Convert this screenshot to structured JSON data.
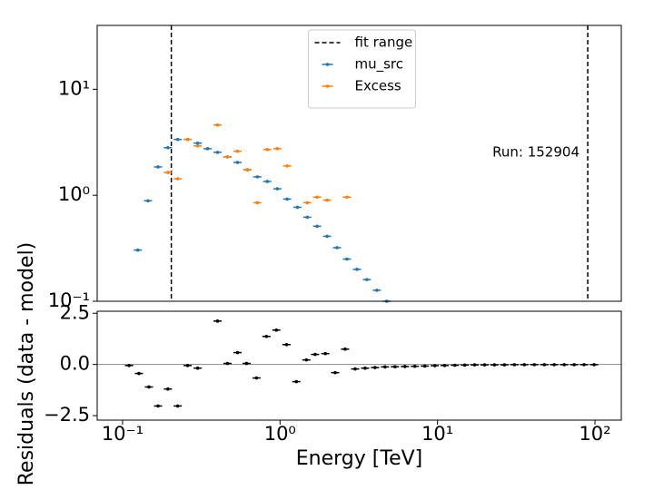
{
  "chart_data": [
    {
      "type": "errorbar",
      "x": [
        0.125,
        0.145,
        0.168,
        0.194,
        0.224,
        0.259,
        0.3,
        0.347,
        0.401,
        0.463,
        0.537,
        0.621,
        0.718,
        0.83,
        0.962,
        1.11,
        1.29,
        1.49,
        1.72,
        1.99,
        2.3,
        2.66,
        3.08,
        3.56,
        4.12,
        4.76
      ],
      "series": [
        {
          "name": "mu_src",
          "color": "#1f77b4",
          "values": [
            0.304,
            0.887,
            1.85,
            2.81,
            3.36,
            3.36,
            3.1,
            2.75,
            2.54,
            2.3,
            2.04,
            1.74,
            1.49,
            1.35,
            1.15,
            0.92,
            0.77,
            0.62,
            0.51,
            0.41,
            0.32,
            0.25,
            0.2,
            0.16,
            0.127,
            0.1
          ]
        },
        {
          "name": "Excess",
          "color": "#ff7f0e",
          "values": [
            null,
            null,
            null,
            1.64,
            1.43,
            3.36,
            2.92,
            null,
            4.6,
            2.3,
            2.6,
            1.74,
            0.85,
            2.7,
            2.75,
            1.89,
            null,
            0.85,
            0.96,
            0.9,
            null,
            0.96,
            null,
            null,
            null,
            null
          ]
        }
      ],
      "fit_range": {
        "name": "fit range",
        "color": "#000000",
        "values": [
          0.204,
          90
        ]
      },
      "annotation": "Run: 152904",
      "xlim": [
        0.069,
        147
      ],
      "ylim": [
        0.1,
        40
      ],
      "log_x": true,
      "log_y": true,
      "yticks": [
        {
          "value": 0.1,
          "label": "10⁻¹"
        },
        {
          "value": 1,
          "label": "10⁰"
        },
        {
          "value": 10,
          "label": "10¹"
        }
      ],
      "legend": "upper center"
    },
    {
      "type": "errorbar",
      "x": [
        0.11,
        0.127,
        0.147,
        0.168,
        0.194,
        0.224,
        0.259,
        0.3,
        0.401,
        0.464,
        0.537,
        0.613,
        0.709,
        0.82,
        0.948,
        1.1,
        1.27,
        1.47,
        1.67,
        1.94,
        2.24,
        2.59,
        3.0,
        3.47,
        4.01,
        4.64,
        5.37,
        6.21,
        7.18,
        8.31,
        9.61,
        11.1,
        12.9,
        14.9,
        17.2,
        19.9,
        23.0,
        26.6,
        30.8,
        35.6,
        41.2,
        47.7,
        55.1,
        63.8,
        73.8,
        85.3,
        98.7
      ],
      "series": [
        {
          "color": "#000000",
          "values": [
            -0.05,
            -0.44,
            -1.1,
            -2.03,
            -1.2,
            -2.03,
            -0.05,
            -0.18,
            2.12,
            0.05,
            0.58,
            0.05,
            -0.66,
            1.37,
            1.68,
            0.97,
            -0.84,
            0.22,
            0.49,
            0.53,
            -0.4,
            0.75,
            -0.22,
            -0.18,
            -0.15,
            -0.12,
            -0.11,
            -0.1,
            -0.09,
            -0.08,
            -0.06,
            -0.05,
            -0.04,
            -0.03,
            -0.02,
            -0.02,
            -0.02,
            -0.02,
            -0.01,
            -0.01,
            -0.01,
            -0.01,
            -0.01,
            -0.01,
            -0.01,
            -0.01,
            -0.01
          ]
        }
      ],
      "xlabel": "Energy [TeV]",
      "ylabel": "Residuals (data - model)",
      "xlim": [
        0.069,
        147
      ],
      "ylim": [
        -2.72,
        2.6
      ],
      "log_x": true,
      "log_y": false,
      "xticks": [
        {
          "value": 0.1,
          "label": "10⁻¹"
        },
        {
          "value": 1,
          "label": "10⁰"
        },
        {
          "value": 10,
          "label": "10¹"
        },
        {
          "value": 100,
          "label": "10²"
        }
      ],
      "yticks": [
        {
          "value": -2.5,
          "label": "−2.5"
        },
        {
          "value": 0,
          "label": "0.0"
        },
        {
          "value": 2.5,
          "label": "2.5"
        }
      ],
      "zero_line": true
    }
  ]
}
